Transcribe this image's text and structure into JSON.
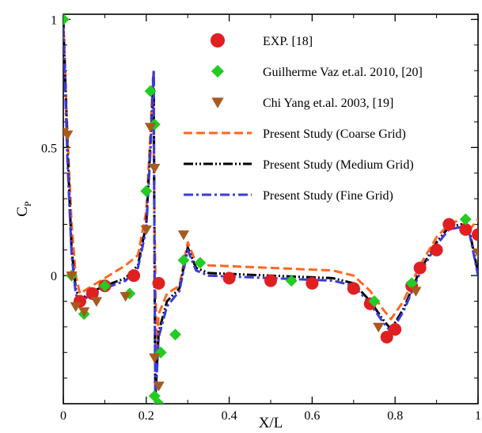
{
  "chart_data": {
    "type": "line",
    "title": "",
    "xlabel": "X/L",
    "ylabel": "C",
    "ylabel_subscript": "P",
    "xlim": [
      0,
      1
    ],
    "ylim": [
      -0.5,
      1.02
    ],
    "xticks": [
      0,
      0.2,
      0.4,
      0.6,
      0.8,
      1
    ],
    "xtick_labels": [
      "0",
      "0.2",
      "0.4",
      "0.6",
      "0.8",
      "1"
    ],
    "yticks": [
      0,
      0.5,
      1
    ],
    "ytick_labels": [
      "0",
      "0.5",
      "1"
    ],
    "grid": false,
    "legend_position": "top-right",
    "scatter_series": [
      {
        "name": "EXP. [18]",
        "marker": "circle",
        "color": "#e02020",
        "x": [
          0.04,
          0.07,
          0.1,
          0.17,
          0.23,
          0.4,
          0.5,
          0.6,
          0.7,
          0.74,
          0.78,
          0.8,
          0.84,
          0.86,
          0.9,
          0.93,
          0.97,
          1.0
        ],
        "y": [
          -0.1,
          -0.07,
          -0.04,
          0.0,
          -0.03,
          -0.01,
          -0.02,
          -0.03,
          -0.05,
          -0.11,
          -0.24,
          -0.21,
          -0.04,
          0.03,
          0.1,
          0.2,
          0.18,
          0.16
        ]
      },
      {
        "name": "Guilherme Vaz et.al. 2010, [20]",
        "marker": "diamond",
        "color": "#22cc22",
        "x": [
          0.0,
          0.02,
          0.05,
          0.1,
          0.16,
          0.2,
          0.21,
          0.22,
          0.22,
          0.23,
          0.235,
          0.27,
          0.29,
          0.33,
          0.55,
          0.75,
          0.84,
          0.97
        ],
        "y": [
          1.0,
          0.0,
          -0.15,
          -0.04,
          -0.07,
          0.33,
          0.72,
          0.59,
          -0.47,
          -0.5,
          -0.3,
          -0.23,
          0.06,
          0.05,
          -0.02,
          -0.1,
          -0.03,
          0.22
        ]
      },
      {
        "name": "Chi Yang et.al. 2003, [19]",
        "marker": "triangle-down",
        "color": "#a85a1e",
        "x": [
          0.0,
          0.01,
          0.02,
          0.03,
          0.05,
          0.08,
          0.15,
          0.2,
          0.21,
          0.22,
          0.22,
          0.23,
          0.29,
          0.76,
          0.85,
          1.0
        ],
        "y": [
          0.56,
          0.55,
          0.0,
          -0.12,
          -0.14,
          -0.1,
          -0.08,
          0.18,
          0.58,
          0.42,
          -0.32,
          -0.43,
          0.16,
          -0.2,
          -0.06,
          0.09
        ]
      }
    ],
    "line_series": [
      {
        "name": "Present Study (Coarse Grid)",
        "color": "#ff6620",
        "dash": "dash",
        "x": [
          0.0,
          0.01,
          0.02,
          0.03,
          0.04,
          0.06,
          0.1,
          0.15,
          0.18,
          0.2,
          0.21,
          0.216,
          0.22,
          0.225,
          0.23,
          0.25,
          0.28,
          0.3,
          0.32,
          0.35,
          0.5,
          0.65,
          0.7,
          0.74,
          0.77,
          0.79,
          0.82,
          0.86,
          0.9,
          0.93,
          0.96,
          0.98,
          1.0
        ],
        "y": [
          1.0,
          0.55,
          0.2,
          0.0,
          -0.07,
          -0.05,
          -0.01,
          0.04,
          0.08,
          0.25,
          0.55,
          0.77,
          0.2,
          -0.3,
          -0.15,
          -0.07,
          -0.04,
          0.13,
          0.05,
          0.04,
          0.03,
          0.02,
          0.0,
          -0.06,
          -0.13,
          -0.17,
          -0.1,
          0.04,
          0.15,
          0.2,
          0.22,
          0.18,
          0.22
        ]
      },
      {
        "name": "Present Study (Medium Grid)",
        "color": "#000000",
        "dash": "dashdotdot",
        "x": [
          0.0,
          0.01,
          0.02,
          0.03,
          0.04,
          0.06,
          0.1,
          0.15,
          0.18,
          0.2,
          0.21,
          0.218,
          0.22,
          0.222,
          0.23,
          0.25,
          0.28,
          0.3,
          0.32,
          0.35,
          0.5,
          0.65,
          0.7,
          0.74,
          0.77,
          0.79,
          0.82,
          0.86,
          0.9,
          0.93,
          0.96,
          0.98,
          1.0
        ],
        "y": [
          1.0,
          0.5,
          0.1,
          -0.05,
          -0.1,
          -0.07,
          -0.04,
          -0.01,
          0.04,
          0.2,
          0.5,
          0.8,
          0.0,
          -0.48,
          -0.22,
          -0.1,
          -0.05,
          0.11,
          0.03,
          0.01,
          0.0,
          -0.01,
          -0.03,
          -0.1,
          -0.17,
          -0.21,
          -0.13,
          0.02,
          0.13,
          0.19,
          0.2,
          0.17,
          0.01
        ]
      },
      {
        "name": "Present Study (Fine Grid)",
        "color": "#3a3ae0",
        "dash": "dashdot",
        "x": [
          0.0,
          0.01,
          0.02,
          0.03,
          0.04,
          0.06,
          0.1,
          0.15,
          0.18,
          0.2,
          0.21,
          0.218,
          0.22,
          0.222,
          0.23,
          0.25,
          0.28,
          0.3,
          0.32,
          0.35,
          0.5,
          0.65,
          0.7,
          0.74,
          0.77,
          0.79,
          0.82,
          0.86,
          0.9,
          0.93,
          0.96,
          0.98,
          1.0
        ],
        "y": [
          0.97,
          0.45,
          0.08,
          -0.07,
          -0.11,
          -0.08,
          -0.05,
          -0.02,
          0.03,
          0.18,
          0.48,
          0.8,
          0.0,
          -0.5,
          -0.24,
          -0.12,
          -0.06,
          0.1,
          0.02,
          0.0,
          -0.01,
          -0.02,
          -0.04,
          -0.11,
          -0.18,
          -0.22,
          -0.14,
          0.01,
          0.12,
          0.18,
          0.19,
          0.16,
          0.0
        ]
      }
    ]
  }
}
